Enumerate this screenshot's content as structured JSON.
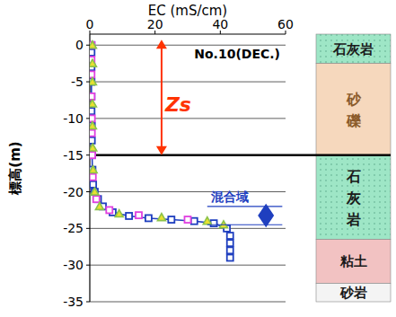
{
  "chart_data": {
    "type": "line",
    "x_label": "EC  (mS/cm)",
    "y_label": "標高(m)",
    "xlim": [
      0,
      60
    ],
    "xticks": [
      0,
      20,
      40,
      60
    ],
    "ylim": [
      -35,
      1.5
    ],
    "yticks": [
      0,
      -5,
      -10,
      -15,
      -20,
      -25,
      -30,
      -35
    ],
    "grid": true,
    "series": [
      {
        "color": "#1f3fbf",
        "marker": "square",
        "line_style": "solid",
        "x": [
          0.5,
          0.5,
          0.5,
          0.5,
          0.5,
          0.5,
          0.6,
          0.6,
          0.7,
          0.8,
          1.0,
          1.5,
          2.5,
          4,
          7,
          12,
          18,
          25,
          32,
          38,
          42,
          43,
          43,
          43,
          43
        ],
        "values": [
          0,
          -1,
          -3,
          -5,
          -7,
          -9,
          -11,
          -13,
          -15,
          -17,
          -19,
          -20,
          -21,
          -22,
          -22.8,
          -23.3,
          -23.6,
          -23.8,
          -24,
          -24.3,
          -25,
          -26,
          -27,
          -28,
          -29
        ]
      },
      {
        "color": "#e040e0",
        "marker": "square",
        "line_style": "none",
        "x": [
          0.5,
          0.5,
          0.5,
          0.5,
          0.6,
          0.6,
          0.7,
          0.9,
          2,
          6,
          15,
          30
        ],
        "values": [
          0,
          -2,
          -4,
          -7,
          -10,
          -12,
          -15,
          -18,
          -21,
          -22.5,
          -23.2,
          -23.8
        ]
      },
      {
        "color": "#8bc34a",
        "marker": "triangle",
        "line_style": "none",
        "x": [
          0.8,
          0.8,
          0.8,
          0.8,
          0.8,
          0.9,
          1.0,
          1.5,
          3,
          9,
          22,
          36,
          41
        ],
        "values": [
          0,
          -2.5,
          -5,
          -8,
          -11,
          -14,
          -17,
          -20,
          -22,
          -23,
          -23.5,
          -24,
          -24.5
        ]
      }
    ],
    "annotations": [
      {
        "text": "No.10(DEC.)"
      },
      {
        "text": "Zs",
        "color": "#ff3300",
        "y_range": [
          0,
          -15
        ]
      },
      {
        "text": "混合域",
        "color": "#1f3fbf",
        "y_range": [
          -22,
          -24.5
        ]
      }
    ],
    "lithology": [
      {
        "label": "石灰岩",
        "top": 1.5,
        "bottom": -2.5,
        "color": "#9ee6c6"
      },
      {
        "label": "砂礫",
        "top": -2.5,
        "bottom": -15,
        "color": "#f6d8bd"
      },
      {
        "label": "石灰岩",
        "top": -15,
        "bottom": -26.5,
        "color": "#9ee6c6"
      },
      {
        "label": "粘土",
        "top": -26.5,
        "bottom": -32.5,
        "color": "#f2c2c2"
      },
      {
        "label": "砂岩",
        "top": -32.5,
        "bottom": -35,
        "color": "#f4f4f4"
      }
    ]
  }
}
